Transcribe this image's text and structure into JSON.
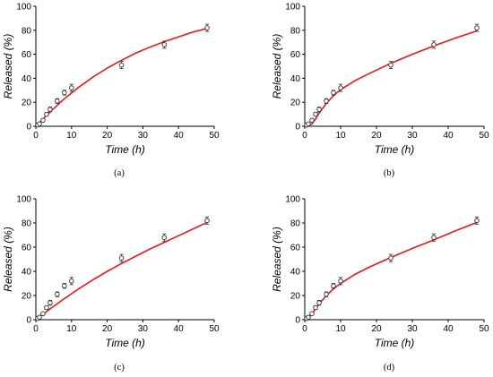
{
  "chart_data": [
    {
      "type": "scatter",
      "panel_label": "(a)",
      "xlabel": "Time (h)",
      "ylabel": "Released (%)",
      "xlim": [
        0,
        50
      ],
      "ylim": [
        0,
        100
      ],
      "xticks": [
        0,
        10,
        20,
        30,
        40,
        50
      ],
      "yticks": [
        0,
        20,
        40,
        60,
        80,
        100
      ],
      "points": [
        {
          "x": 0.5,
          "y": 1,
          "err": 1
        },
        {
          "x": 1,
          "y": 2,
          "err": 1
        },
        {
          "x": 2,
          "y": 5,
          "err": 1
        },
        {
          "x": 3,
          "y": 10,
          "err": 1.5
        },
        {
          "x": 4,
          "y": 14,
          "err": 2
        },
        {
          "x": 6,
          "y": 21,
          "err": 2
        },
        {
          "x": 8,
          "y": 28,
          "err": 2
        },
        {
          "x": 10,
          "y": 32,
          "err": 3
        },
        {
          "x": 24,
          "y": 51,
          "err": 3
        },
        {
          "x": 36,
          "y": 68,
          "err": 3
        },
        {
          "x": 48,
          "y": 82,
          "err": 3
        }
      ],
      "fit_curve": {
        "x": [
          0,
          4,
          8,
          12,
          16,
          20,
          24,
          28,
          32,
          36,
          40,
          44,
          48
        ],
        "y": [
          0,
          12,
          23,
          32.5,
          41,
          48.5,
          55,
          61,
          66,
          70.5,
          74.5,
          78.5,
          81.5
        ]
      },
      "colors": {
        "fit": "#e8191c",
        "points": "#333333"
      }
    },
    {
      "type": "scatter",
      "panel_label": "(b)",
      "xlabel": "Time (h)",
      "ylabel": "Released (%)",
      "xlim": [
        0,
        50
      ],
      "ylim": [
        0,
        100
      ],
      "xticks": [
        0,
        10,
        20,
        30,
        40,
        50
      ],
      "yticks": [
        0,
        20,
        40,
        60,
        80,
        100
      ],
      "points": [
        {
          "x": 0.5,
          "y": 1,
          "err": 1
        },
        {
          "x": 1,
          "y": 2,
          "err": 1
        },
        {
          "x": 2,
          "y": 5,
          "err": 1
        },
        {
          "x": 3,
          "y": 10,
          "err": 1.5
        },
        {
          "x": 4,
          "y": 14,
          "err": 2
        },
        {
          "x": 6,
          "y": 21,
          "err": 2
        },
        {
          "x": 8,
          "y": 28,
          "err": 2
        },
        {
          "x": 10,
          "y": 32,
          "err": 3
        },
        {
          "x": 24,
          "y": 51,
          "err": 3
        },
        {
          "x": 36,
          "y": 68,
          "err": 3
        },
        {
          "x": 48,
          "y": 82,
          "err": 3
        }
      ],
      "fit_curve": {
        "x": [
          0,
          1,
          2,
          3,
          4,
          6,
          8,
          10,
          14,
          18,
          24,
          30,
          36,
          42,
          48
        ],
        "y": [
          0,
          0.5,
          2,
          6,
          11,
          19,
          25.5,
          30.5,
          38,
          44,
          52.5,
          60,
          67,
          73.5,
          79.5
        ]
      },
      "colors": {
        "fit": "#e8191c",
        "points": "#333333"
      }
    },
    {
      "type": "scatter",
      "panel_label": "(c)",
      "xlabel": "Time (h)",
      "ylabel": "Released (%)",
      "xlim": [
        0,
        50
      ],
      "ylim": [
        0,
        100
      ],
      "xticks": [
        0,
        10,
        20,
        30,
        40,
        50
      ],
      "yticks": [
        0,
        20,
        40,
        60,
        80,
        100
      ],
      "points": [
        {
          "x": 0.5,
          "y": 1,
          "err": 1
        },
        {
          "x": 1,
          "y": 2,
          "err": 1
        },
        {
          "x": 2,
          "y": 5,
          "err": 1
        },
        {
          "x": 3,
          "y": 10,
          "err": 1.5
        },
        {
          "x": 4,
          "y": 14,
          "err": 2
        },
        {
          "x": 6,
          "y": 21,
          "err": 2
        },
        {
          "x": 8,
          "y": 28,
          "err": 2
        },
        {
          "x": 10,
          "y": 32,
          "err": 3
        },
        {
          "x": 24,
          "y": 51,
          "err": 3
        },
        {
          "x": 36,
          "y": 68,
          "err": 3
        },
        {
          "x": 48,
          "y": 82,
          "err": 3
        }
      ],
      "fit_curve": {
        "x": [
          0,
          4,
          8,
          12,
          16,
          20,
          24,
          28,
          32,
          36,
          40,
          44,
          48
        ],
        "y": [
          0,
          9,
          17.5,
          25.5,
          33,
          40,
          46.5,
          52.5,
          58.5,
          64,
          69.5,
          75,
          80.5
        ]
      },
      "colors": {
        "fit": "#e8191c",
        "points": "#333333"
      }
    },
    {
      "type": "scatter",
      "panel_label": "(d)",
      "xlabel": "Time (h)",
      "ylabel": "Released (%)",
      "xlim": [
        0,
        50
      ],
      "ylim": [
        0,
        100
      ],
      "xticks": [
        0,
        10,
        20,
        30,
        40,
        50
      ],
      "yticks": [
        0,
        20,
        40,
        60,
        80,
        100
      ],
      "points": [
        {
          "x": 0.5,
          "y": 1,
          "err": 1
        },
        {
          "x": 1,
          "y": 2,
          "err": 1
        },
        {
          "x": 2,
          "y": 5,
          "err": 1
        },
        {
          "x": 3,
          "y": 10,
          "err": 1.5
        },
        {
          "x": 4,
          "y": 14,
          "err": 2
        },
        {
          "x": 6,
          "y": 21,
          "err": 2
        },
        {
          "x": 8,
          "y": 28,
          "err": 2
        },
        {
          "x": 10,
          "y": 32,
          "err": 3
        },
        {
          "x": 24,
          "y": 51,
          "err": 3
        },
        {
          "x": 36,
          "y": 68,
          "err": 3
        },
        {
          "x": 48,
          "y": 82,
          "err": 3
        }
      ],
      "fit_curve": {
        "x": [
          0,
          1,
          2,
          3,
          4,
          6,
          8,
          10,
          14,
          18,
          24,
          30,
          36,
          42,
          48
        ],
        "y": [
          0,
          1.5,
          4.5,
          9,
          13,
          20,
          25.5,
          30,
          37.5,
          43.5,
          51.5,
          59,
          66,
          73.5,
          80.5
        ]
      },
      "colors": {
        "fit": "#e8191c",
        "points": "#333333"
      }
    }
  ]
}
